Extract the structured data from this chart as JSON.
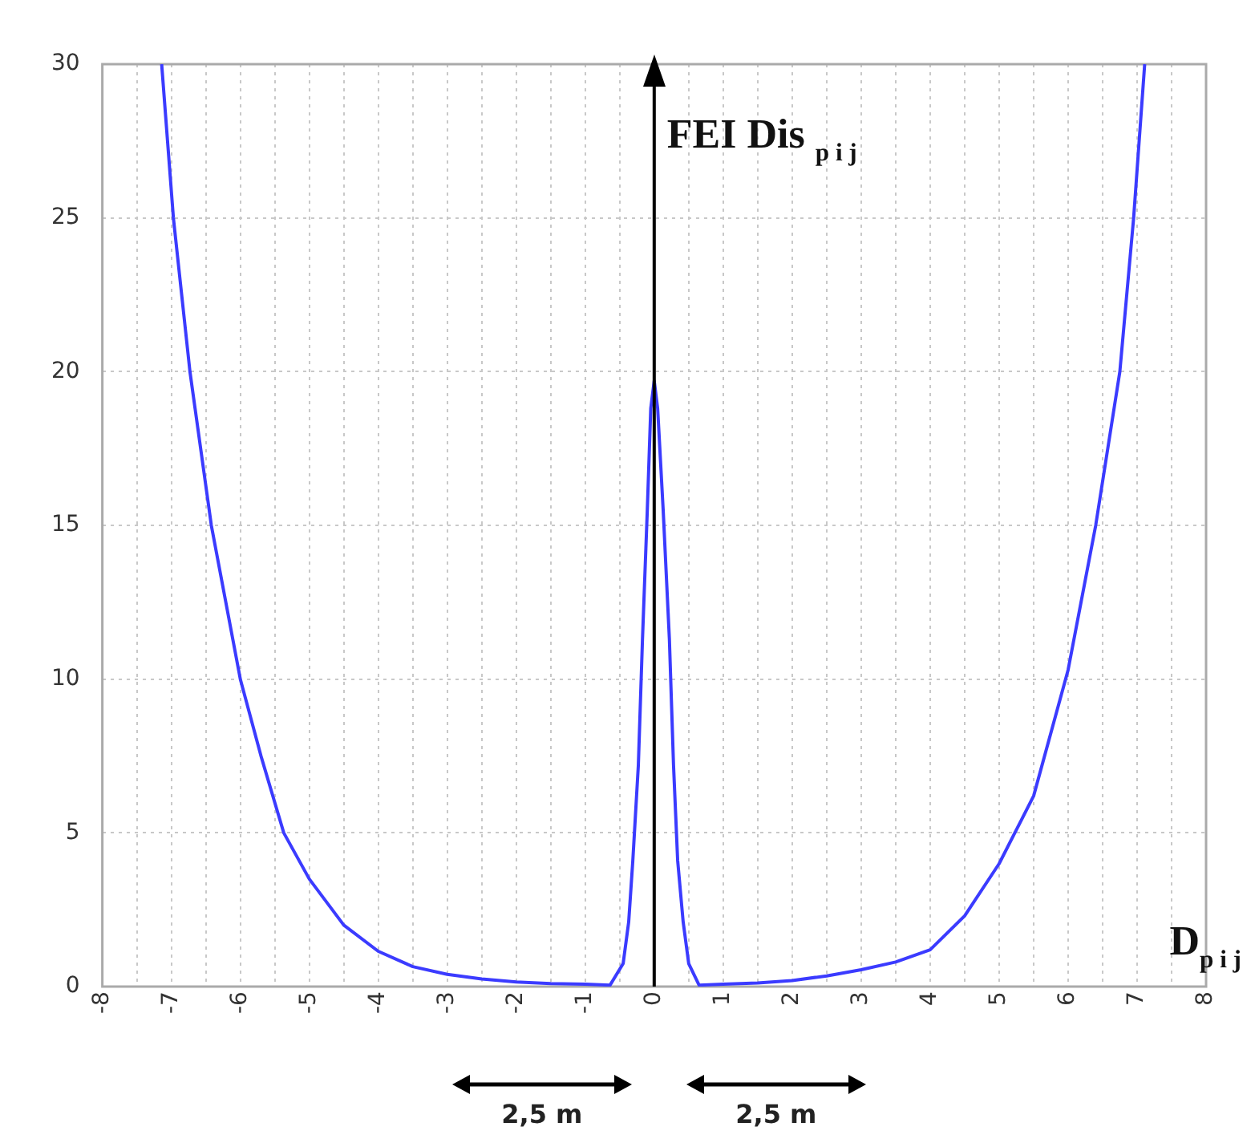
{
  "chart_data": {
    "type": "line",
    "xlabel": "D$_{p i j}$",
    "ylabel": "FEI Dis $_{p i j}$",
    "series": [
      {
        "color": "#3b3bff",
        "x": [
          -7.14,
          -6.97,
          -6.73,
          -6.42,
          -6,
          -5.7,
          -5.37,
          -5,
          -4.5,
          -4,
          -3.5,
          -3,
          -2.5,
          -2,
          -1.5,
          -1,
          -0.64,
          -0.45,
          -0.37,
          -0.31,
          -0.23,
          -0.17,
          -0.1,
          -0.05,
          0,
          0.05,
          0.13,
          0.22,
          0.28,
          0.34,
          0.42,
          0.5,
          0.65,
          1,
          1.5,
          2,
          2.5,
          3,
          3.5,
          4,
          4.5,
          5,
          5.5,
          6,
          6.4,
          6.75,
          6.95,
          7.11
        ],
        "values": [
          30,
          25,
          20,
          15,
          10,
          7.5,
          5,
          3.5,
          2,
          1.15,
          0.65,
          0.4,
          0.25,
          0.15,
          0.1,
          0.08,
          0.05,
          0.75,
          2.1,
          4.1,
          7.2,
          11.3,
          15.5,
          18.8,
          19.7,
          18.8,
          15.5,
          11.3,
          7.2,
          4.1,
          2.1,
          0.75,
          0.05,
          0.08,
          0.12,
          0.2,
          0.35,
          0.55,
          0.8,
          1.2,
          2.3,
          4,
          6.2,
          10.3,
          15,
          20,
          25,
          30
        ]
      }
    ],
    "xlim": [
      -8,
      8
    ],
    "xticks": [
      -8,
      {
        "value": -7.5,
        "label": null
      },
      -7,
      {
        "value": -6.5,
        "label": null
      },
      -6,
      {
        "value": -5.5,
        "label": null
      },
      -5,
      {
        "value": -4.5,
        "label": null
      },
      -4,
      {
        "value": -3.5,
        "label": null
      },
      -3,
      {
        "value": -2.5,
        "label": null
      },
      -2,
      {
        "value": -1.5,
        "label": null
      },
      -1,
      {
        "value": -0.5,
        "label": null
      },
      0,
      {
        "value": 0.5,
        "label": null
      },
      1,
      {
        "value": 1.5,
        "label": null
      },
      2,
      {
        "value": 2.5,
        "label": null
      },
      3,
      {
        "value": 3.5,
        "label": null
      },
      4,
      {
        "value": 4.5,
        "label": null
      },
      5,
      {
        "value": 5.5,
        "label": null
      },
      6,
      {
        "value": 6.5,
        "label": null
      },
      7,
      {
        "value": 7.5,
        "label": null
      },
      8
    ],
    "ylim": [
      0,
      30
    ],
    "yticks": [
      0,
      5,
      10,
      15,
      20,
      25,
      30
    ],
    "grid": true,
    "marker": "none",
    "line_style": "solid",
    "ref_lines": [
      {
        "axis": "x",
        "value": 0,
        "color": "#000000"
      }
    ],
    "annotations": [
      "2,5 m",
      "2,5 m"
    ]
  }
}
